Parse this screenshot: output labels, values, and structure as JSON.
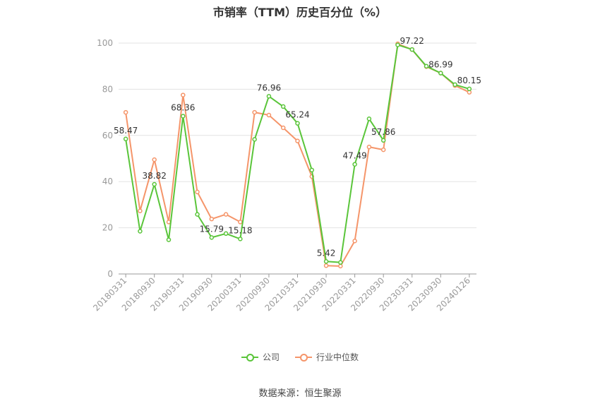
{
  "title": "市销率（TTM）历史百分位（%）",
  "source": "数据来源：恒生聚源",
  "colors": {
    "company": "#5ac53a",
    "industry": "#f5956a",
    "grid": "#e3e3e3",
    "axis": "#999999",
    "tick_text": "#999999"
  },
  "chart_data": {
    "type": "line",
    "title": "市销率（TTM）历史百分位（%）",
    "x_tick_labels": [
      "20180331",
      "20180930",
      "20190331",
      "20190930",
      "20200331",
      "20200930",
      "20210331",
      "20210930",
      "20220331",
      "20220930",
      "20230331",
      "20230930",
      "20240126"
    ],
    "x": [
      "20180331",
      "20180630",
      "20180930",
      "20181231",
      "20190331",
      "20190630",
      "20190930",
      "20191231",
      "20200331",
      "20200630",
      "20200930",
      "20201231",
      "20210331",
      "20210630",
      "20210930",
      "20211231",
      "20220331",
      "20220630",
      "20220930",
      "20221231",
      "20230331",
      "20230630",
      "20230930",
      "20231231",
      "20240126"
    ],
    "ylim": [
      0,
      100
    ],
    "yticks": [
      0,
      20,
      40,
      60,
      80,
      100
    ],
    "grid": true,
    "legend_position": "bottom",
    "series": [
      {
        "name": "公司",
        "color": "#5ac53a",
        "values": [
          58.47,
          18.5,
          38.82,
          14.8,
          68.36,
          25.8,
          15.79,
          17.5,
          15.18,
          58.3,
          76.96,
          72.5,
          65.24,
          45.0,
          5.42,
          5.0,
          47.49,
          67.2,
          57.86,
          99.2,
          97.22,
          90.0,
          86.99,
          82.0,
          80.15
        ],
        "labels": {
          "0": "58.47",
          "2": "38.82",
          "4": "68.36",
          "6": "15.79",
          "8": "15.18",
          "10": "76.96",
          "12": "65.24",
          "14": "5.42",
          "16": "47.49",
          "18": "57.86",
          "20": "97.22",
          "22": "86.99",
          "24": "80.15"
        }
      },
      {
        "name": "行业中位数",
        "color": "#f5956a",
        "values": [
          70.0,
          27.3,
          49.5,
          22.5,
          77.5,
          35.5,
          23.8,
          25.8,
          22.5,
          70.0,
          68.8,
          63.3,
          57.6,
          42.2,
          3.6,
          3.4,
          14.3,
          55.0,
          53.8,
          99.7,
          97.2,
          89.8,
          87.0,
          81.6,
          78.7
        ]
      }
    ]
  }
}
